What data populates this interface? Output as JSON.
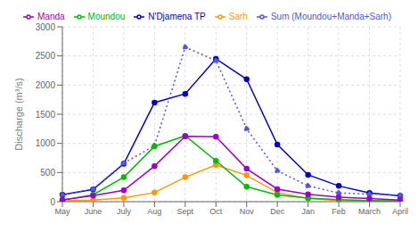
{
  "chart_data": {
    "type": "line",
    "ylabel": "Discharge (m³/s)",
    "categories": [
      "May",
      "June",
      "July",
      "Aug",
      "Sept",
      "Oct",
      "Nov",
      "Dec",
      "Jan",
      "Feb",
      "March",
      "April"
    ],
    "series": [
      {
        "name": "N'Djamena TP",
        "color": "#0000cc",
        "line_style": "solid",
        "marker": "circle",
        "values": [
          120,
          210,
          650,
          1700,
          1850,
          2450,
          2100,
          980,
          460,
          270,
          150,
          100
        ]
      },
      {
        "name": "Sum (Moundou+Manda+Sarh)",
        "color": "#5555dd",
        "line_style": "dotted",
        "marker": "circle",
        "values": [
          120,
          215,
          660,
          960,
          2650,
          2420,
          1250,
          530,
          270,
          150,
          130,
          110
        ]
      },
      {
        "name": "Sarh",
        "color": "#ff9900",
        "line_style": "solid",
        "marker": "circle",
        "values": [
          15,
          25,
          65,
          155,
          420,
          630,
          450,
          155,
          55,
          20,
          10,
          8
        ]
      },
      {
        "name": "Moundou",
        "color": "#00bb00",
        "line_style": "solid",
        "marker": "circle",
        "values": [
          25,
          120,
          420,
          950,
          1130,
          700,
          255,
          115,
          60,
          35,
          20,
          12
        ]
      },
      {
        "name": "Manda",
        "color": "#9900cc",
        "line_style": "solid",
        "marker": "circle",
        "values": [
          30,
          105,
          195,
          610,
          1120,
          1115,
          565,
          215,
          125,
          75,
          55,
          28
        ]
      }
    ],
    "ylim": [
      0,
      3000
    ],
    "yticks": [
      0,
      500,
      1000,
      1500,
      2000,
      2500,
      3000
    ],
    "grid": true,
    "legend": "upper right"
  }
}
